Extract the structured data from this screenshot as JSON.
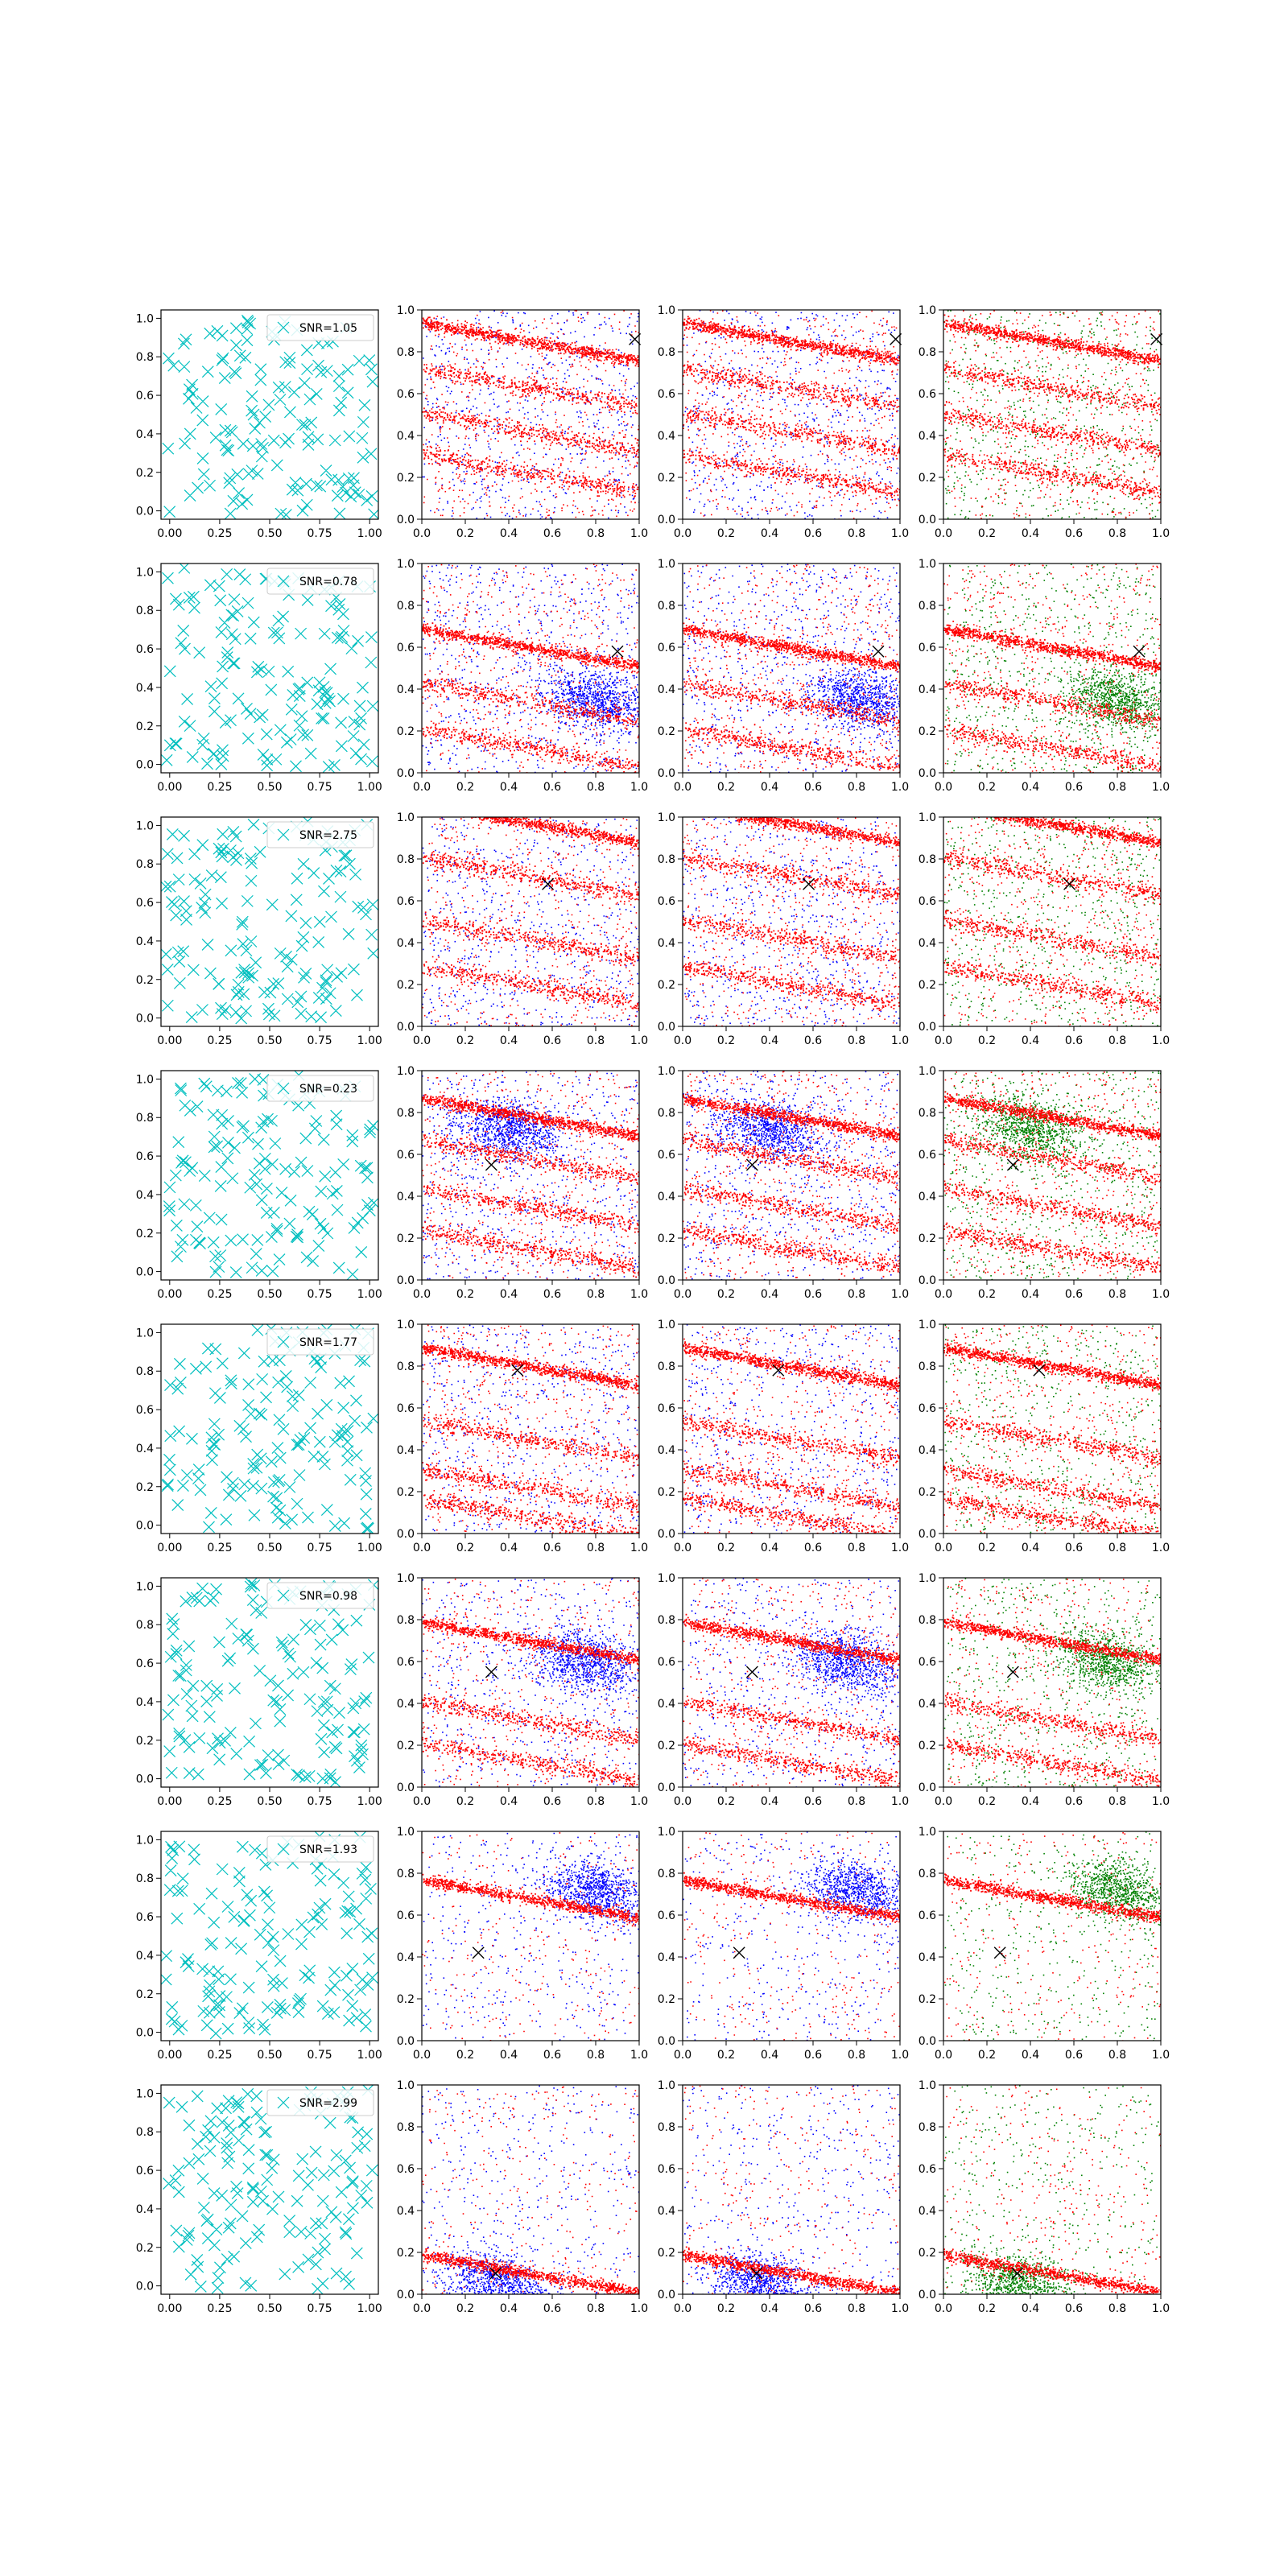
{
  "figure": {
    "rows": 8,
    "cols": 4,
    "note": ""
  },
  "colors": {
    "cross": "#00bfbf",
    "red": "#ff0000",
    "blue": "#0000ff",
    "green": "#008000",
    "marker": "#000000",
    "axis": "#000000"
  },
  "chart_data": {
    "type": "scatter",
    "column_kinds": [
      "cross",
      "red-blue",
      "red-blue",
      "red-green"
    ],
    "col0_ticks": [
      "0.00",
      "0.25",
      "0.50",
      "0.75",
      "1.00"
    ],
    "other_ticks": [
      "0.0",
      "0.2",
      "0.4",
      "0.6",
      "0.8",
      "1.0"
    ],
    "y_ticks": [
      "0.0",
      "0.2",
      "0.4",
      "0.6",
      "0.8",
      "1.0"
    ],
    "xlim": [
      0,
      1
    ],
    "ylim": [
      0,
      1
    ],
    "rows": [
      {
        "legend": "SNR=1.05",
        "marker": [
          0.98,
          0.86
        ],
        "bands": [
          0.85,
          0.63,
          0.42,
          0.22
        ],
        "blue_blob": null,
        "density": 0.55
      },
      {
        "legend": "SNR=0.78",
        "marker": [
          0.9,
          0.58
        ],
        "bands": [
          0.6,
          0.34,
          0.12
        ],
        "blue_blob": [
          0.8,
          0.35
        ],
        "density": 0.55
      },
      {
        "legend": "SNR=2.75",
        "marker": [
          0.58,
          0.68
        ],
        "bands": [
          0.97,
          0.72,
          0.42,
          0.2
        ],
        "blue_blob": null,
        "density": 0.55
      },
      {
        "legend": "SNR=0.23",
        "marker": [
          0.32,
          0.55
        ],
        "bands": [
          0.78,
          0.58,
          0.35,
          0.15
        ],
        "blue_blob": [
          0.4,
          0.72
        ],
        "density": 0.55
      },
      {
        "legend": "SNR=1.77",
        "marker": [
          0.44,
          0.78
        ],
        "bands": [
          0.8,
          0.45,
          0.22,
          0.08
        ],
        "blue_blob": null,
        "density": 0.5
      },
      {
        "legend": "SNR=0.98",
        "marker": [
          0.32,
          0.55
        ],
        "bands": [
          0.7,
          0.32,
          0.12
        ],
        "blue_blob": [
          0.75,
          0.6
        ],
        "density": 0.45
      },
      {
        "legend": "SNR=1.93",
        "marker": [
          0.26,
          0.42
        ],
        "bands": [
          0.68
        ],
        "blue_blob": [
          0.8,
          0.72
        ],
        "density": 0.3
      },
      {
        "legend": "SNR=2.99",
        "marker": [
          0.34,
          0.1
        ],
        "bands": [
          0.1
        ],
        "blue_blob": [
          0.35,
          0.05
        ],
        "density": 0.3
      }
    ]
  }
}
